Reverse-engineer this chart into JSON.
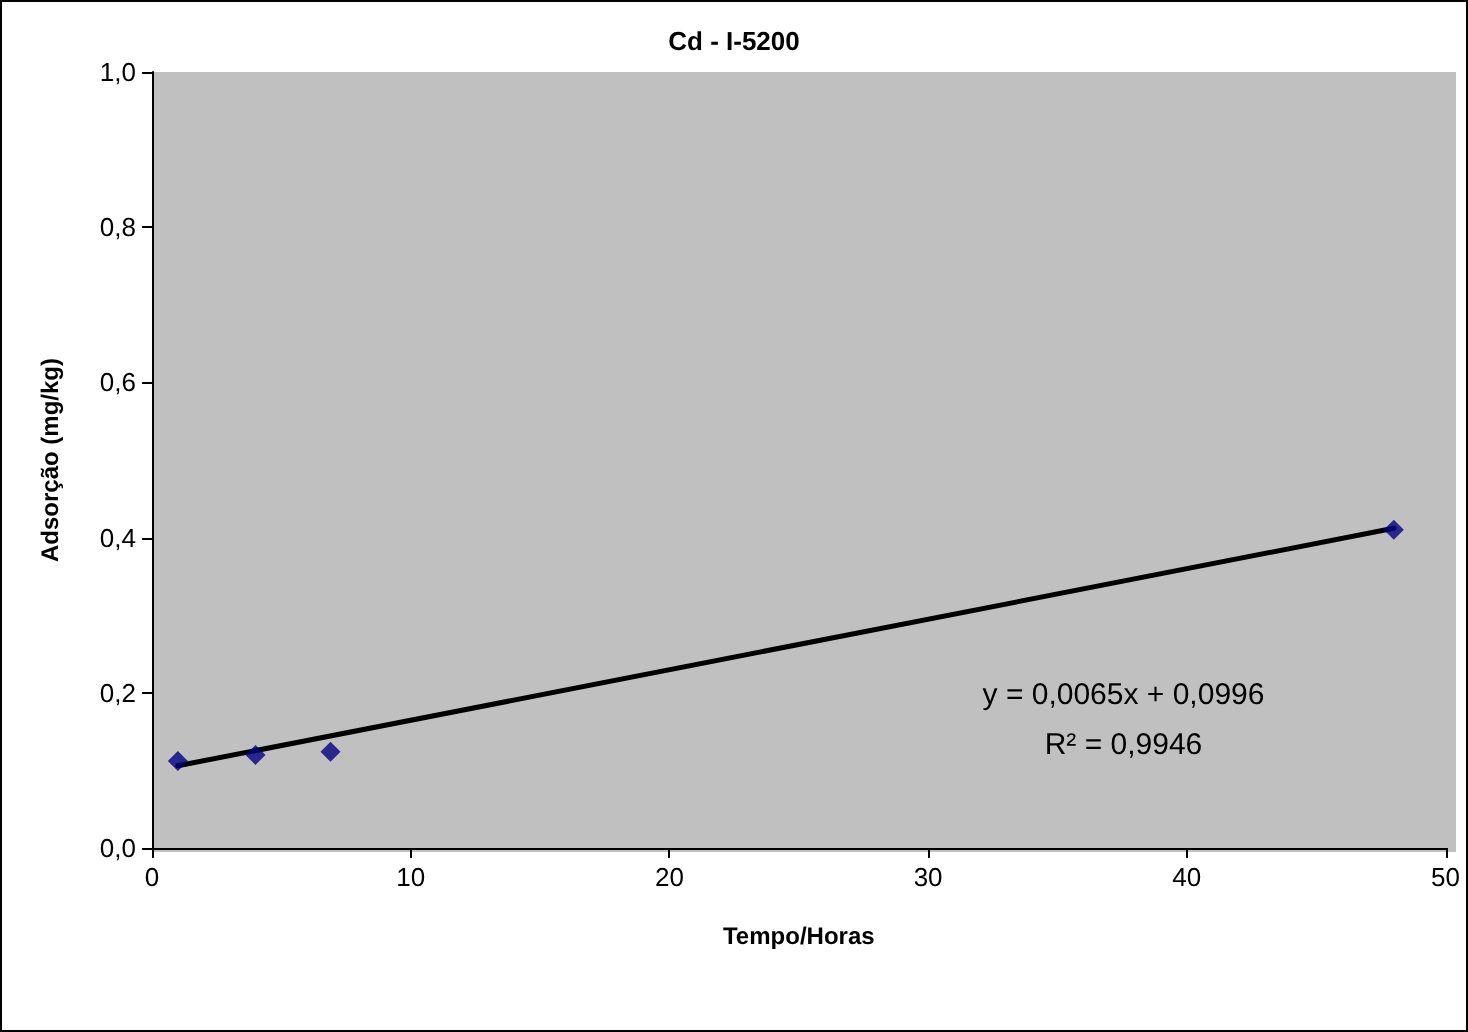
{
  "chart_data": {
    "type": "scatter",
    "title": "Cd - I-5200",
    "xlabel": "Tempo/Horas",
    "ylabel": "Adsorção (mg/kg)",
    "annotations": [
      "y = 0,0065x + 0,0996",
      "R² = 0,9946"
    ],
    "series": [
      {
        "color": "#000080",
        "x": [
          1,
          4,
          6.9,
          48
        ],
        "values": [
          0.112,
          0.12,
          0.124,
          0.41
        ],
        "marker": "diamond"
      },
      {
        "type": "line",
        "color": "#000000",
        "x": [
          1,
          48
        ],
        "values": [
          0.106,
          0.412
        ],
        "marker": "none",
        "line_style": "solid"
      }
    ],
    "xlim": [
      0,
      50
    ],
    "xticks": [
      0,
      10,
      20,
      30,
      40,
      50
    ],
    "ylim": [
      0,
      1
    ],
    "yticks": [
      {
        "value": 0,
        "label": "0,0"
      },
      {
        "value": 0.2,
        "label": "0,2"
      },
      {
        "value": 0.4,
        "label": "0,4"
      },
      {
        "value": 0.6,
        "label": "0,6"
      },
      {
        "value": 0.8,
        "label": "0,8"
      },
      {
        "value": 1,
        "label": "1,0"
      }
    ],
    "grid": false
  }
}
